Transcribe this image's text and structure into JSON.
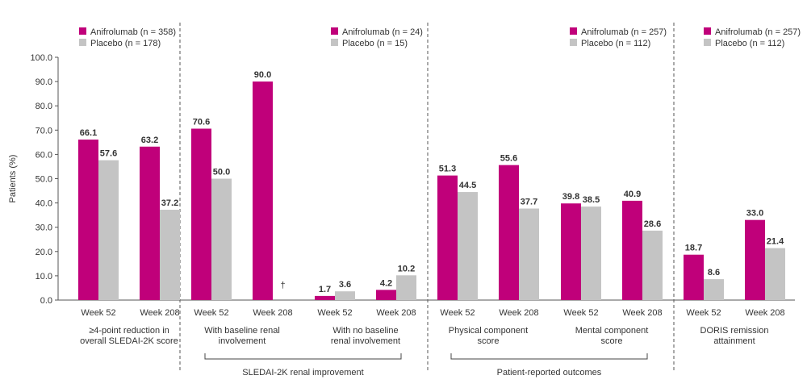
{
  "chart_data": {
    "type": "bar",
    "ylabel": "Patients (%)",
    "ylim": [
      0,
      100
    ],
    "ytick_labels": [
      "0.0",
      "10.0",
      "20.0",
      "30.0",
      "40.0",
      "50.0",
      "60.0",
      "70.0",
      "80.0",
      "90.0",
      "100.0"
    ],
    "colors": {
      "anifrolumab": "#c0007a",
      "placebo": "#c4c4c4",
      "text": "#333333",
      "axis": "#555555"
    },
    "dagger": "†",
    "panels": [
      {
        "legend": [
          "Anifrolumab (n = 358)",
          "Placebo (n = 178)"
        ],
        "groups": [
          {
            "week": "Week 52",
            "anifrolumab": 66.1,
            "placebo": 57.6,
            "labels": [
              "66.1",
              "57.6"
            ]
          },
          {
            "week": "Week 208",
            "anifrolumab": 63.2,
            "placebo": 37.2,
            "labels": [
              "63.2",
              "37.2"
            ]
          }
        ],
        "subcategories": [
          {
            "lines": [
              "≥4-point reduction in",
              "overall SLEDAI-2K score"
            ],
            "groups": [
              0,
              1
            ]
          }
        ],
        "bracket": null
      },
      {
        "legend": [
          "Anifrolumab (n = 24)",
          "Placebo (n = 15)"
        ],
        "groups": [
          {
            "week": "Week 52",
            "anifrolumab": 70.6,
            "placebo": 50.0,
            "labels": [
              "70.6",
              "50.0"
            ]
          },
          {
            "week": "Week 208",
            "anifrolumab": 90.0,
            "placebo": null,
            "labels": [
              "90.0",
              null
            ]
          },
          {
            "week": "Week 52",
            "anifrolumab": 1.7,
            "placebo": 3.6,
            "labels": [
              "1.7",
              "3.6"
            ]
          },
          {
            "week": "Week 208",
            "anifrolumab": 4.2,
            "placebo": 10.2,
            "labels": [
              "4.2",
              "10.2"
            ]
          }
        ],
        "subcategories": [
          {
            "lines": [
              "With baseline renal",
              "involvement"
            ],
            "groups": [
              0,
              1
            ]
          },
          {
            "lines": [
              "With no baseline",
              "renal involvement"
            ],
            "groups": [
              2,
              3
            ]
          }
        ],
        "bracket": "SLEDAI-2K renal improvement"
      },
      {
        "legend": [
          "Anifrolumab (n = 257)",
          "Placebo (n = 112)"
        ],
        "groups": [
          {
            "week": "Week 52",
            "anifrolumab": 51.3,
            "placebo": 44.5,
            "labels": [
              "51.3",
              "44.5"
            ]
          },
          {
            "week": "Week 208",
            "anifrolumab": 55.6,
            "placebo": 37.7,
            "labels": [
              "55.6",
              "37.7"
            ]
          },
          {
            "week": "Week 52",
            "anifrolumab": 39.8,
            "placebo": 38.5,
            "labels": [
              "39.8",
              "38.5"
            ]
          },
          {
            "week": "Week 208",
            "anifrolumab": 40.9,
            "placebo": 28.6,
            "labels": [
              "40.9",
              "28.6"
            ]
          }
        ],
        "subcategories": [
          {
            "lines": [
              "Physical component",
              "score"
            ],
            "groups": [
              0,
              1
            ]
          },
          {
            "lines": [
              "Mental component",
              "score"
            ],
            "groups": [
              2,
              3
            ]
          }
        ],
        "bracket": "Patient-reported outcomes"
      },
      {
        "legend": [
          "Anifrolumab (n = 257)",
          "Placebo (n = 112)"
        ],
        "groups": [
          {
            "week": "Week 52",
            "anifrolumab": 18.7,
            "placebo": 8.6,
            "labels": [
              "18.7",
              "8.6"
            ]
          },
          {
            "week": "Week 208",
            "anifrolumab": 33.0,
            "placebo": 21.4,
            "labels": [
              "33.0",
              "21.4"
            ]
          }
        ],
        "subcategories": [
          {
            "lines": [
              "DORIS remission",
              "attainment"
            ],
            "groups": [
              0,
              1
            ]
          }
        ],
        "bracket": null
      }
    ]
  }
}
